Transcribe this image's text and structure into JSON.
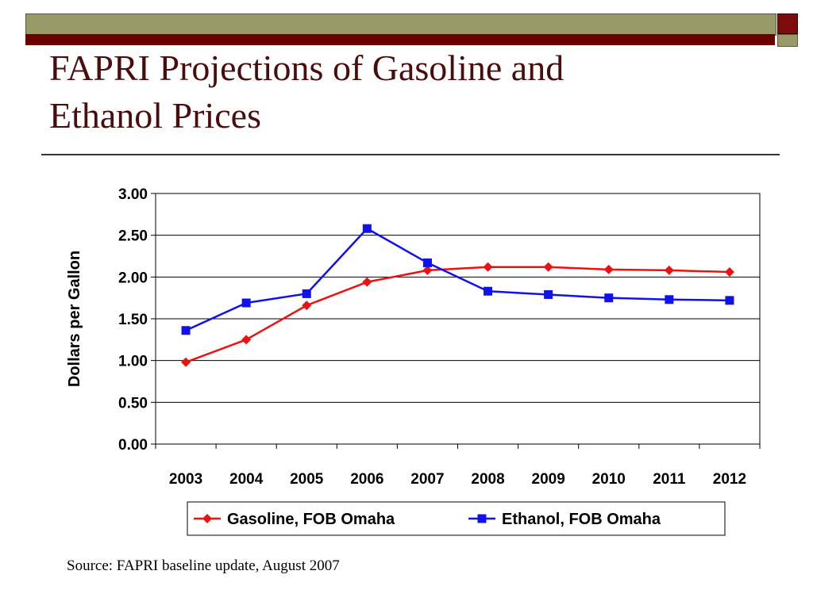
{
  "slide": {
    "title_line1": "FAPRI Projections of Gasoline and",
    "title_line2": "Ethanol Prices",
    "source": "Source: FAPRI baseline update, August 2007"
  },
  "theme": {
    "maroon": "#6b0000",
    "olive": "#9a9a68",
    "title_color": "#4a0c0c"
  },
  "chart_data": {
    "type": "line",
    "title": "",
    "xlabel": "",
    "ylabel": "Dollars per Gallon",
    "categories": [
      "2003",
      "2004",
      "2005",
      "2006",
      "2007",
      "2008",
      "2009",
      "2010",
      "2011",
      "2012"
    ],
    "ylim": [
      0,
      3
    ],
    "yticks": [
      "0.00",
      "0.50",
      "1.00",
      "1.50",
      "2.00",
      "2.50",
      "3.00"
    ],
    "grid": true,
    "legend_position": "bottom",
    "series": [
      {
        "name": "Gasoline, FOB Omaha",
        "color": "#ee1111",
        "marker": "diamond",
        "values": [
          0.98,
          1.25,
          1.66,
          1.94,
          2.08,
          2.12,
          2.12,
          2.09,
          2.08,
          2.06
        ]
      },
      {
        "name": "Ethanol, FOB Omaha",
        "color": "#1111ee",
        "marker": "square",
        "values": [
          1.36,
          1.69,
          1.8,
          2.58,
          2.17,
          1.83,
          1.79,
          1.75,
          1.73,
          1.72
        ]
      }
    ]
  }
}
